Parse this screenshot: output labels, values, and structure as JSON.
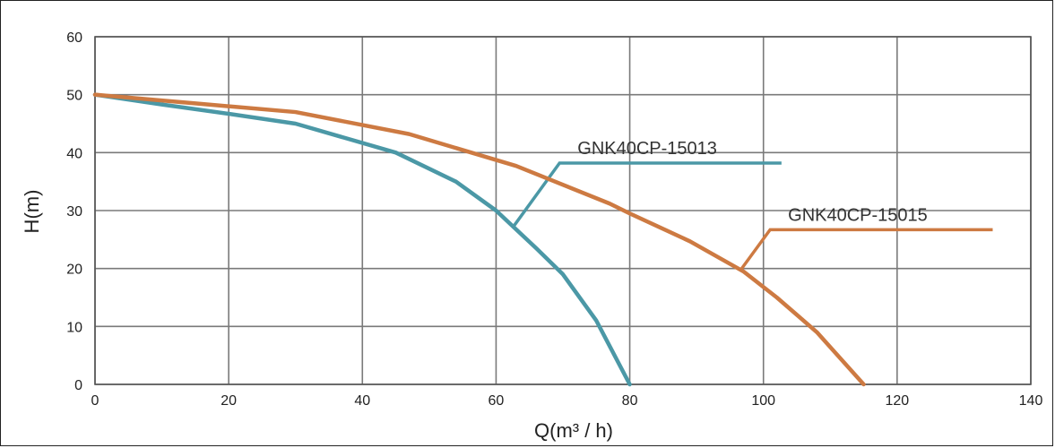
{
  "chart_data": {
    "type": "line",
    "xlabel": "Q(m³ / h)",
    "ylabel": "H(m)",
    "xlim": [
      0,
      140
    ],
    "ylim": [
      0,
      60
    ],
    "x_ticks": [
      "0",
      "20",
      "40",
      "60",
      "80",
      "100",
      "120",
      "140"
    ],
    "y_ticks": [
      "0",
      "10",
      "20",
      "30",
      "40",
      "50",
      "60"
    ],
    "grid": true,
    "series": [
      {
        "name": "GNK40CP-15013",
        "color": "#4b98a6",
        "points": [
          [
            0,
            50
          ],
          [
            10,
            48.3
          ],
          [
            20,
            46.7
          ],
          [
            30,
            45
          ],
          [
            45,
            40
          ],
          [
            54,
            35
          ],
          [
            60,
            30
          ],
          [
            66,
            23.5
          ],
          [
            70,
            19
          ],
          [
            75,
            11
          ],
          [
            80,
            0
          ]
        ],
        "label_callout": [
          [
            62.7,
            27.4
          ],
          [
            69.5,
            38.2
          ],
          [
            102.7,
            38.2
          ]
        ]
      },
      {
        "name": "GNK40CP-15015",
        "color": "#cd7a42",
        "points": [
          [
            0,
            50
          ],
          [
            15,
            48.5
          ],
          [
            30,
            47
          ],
          [
            47,
            43.2
          ],
          [
            63,
            37.7
          ],
          [
            77,
            31.2
          ],
          [
            80,
            29.5
          ],
          [
            89,
            24.7
          ],
          [
            97,
            19.5
          ],
          [
            102,
            15
          ],
          [
            108,
            9
          ],
          [
            115,
            0
          ]
        ],
        "label_callout": [
          [
            96.5,
            19.6
          ],
          [
            101,
            26.7
          ],
          [
            134.3,
            26.7
          ]
        ]
      }
    ]
  }
}
